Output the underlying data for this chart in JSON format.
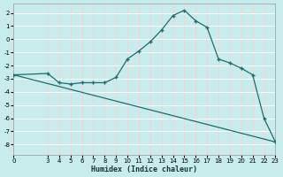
{
  "xlabel": "Humidex (Indice chaleur)",
  "background_color": "#c8ecec",
  "grid_color_h": "#ffffff",
  "grid_color_v": "#ffcccc",
  "line_color": "#1a6e6e",
  "x_ticks": [
    0,
    3,
    4,
    5,
    6,
    7,
    8,
    9,
    10,
    11,
    12,
    13,
    14,
    15,
    16,
    17,
    18,
    19,
    20,
    21,
    22,
    23
  ],
  "y_ticks": [
    -8,
    -7,
    -6,
    -5,
    -4,
    -3,
    -2,
    -1,
    0,
    1,
    2
  ],
  "ylim": [
    -8.8,
    2.7
  ],
  "xlim": [
    0,
    23
  ],
  "line1_x": [
    0,
    3,
    4,
    5,
    6,
    7,
    8,
    9,
    10,
    11,
    12,
    13,
    14,
    15,
    16,
    17,
    18,
    19,
    20,
    21,
    22,
    23
  ],
  "line1_y": [
    -2.7,
    -2.6,
    -3.3,
    -3.4,
    -3.3,
    -3.3,
    -3.3,
    -2.9,
    -1.5,
    -0.9,
    -0.2,
    0.7,
    1.8,
    2.2,
    1.4,
    0.9,
    -1.5,
    -1.8,
    -2.2,
    -2.7,
    -6.0,
    -7.8
  ],
  "line2_x": [
    0,
    23
  ],
  "line2_y": [
    -2.7,
    -7.8
  ]
}
